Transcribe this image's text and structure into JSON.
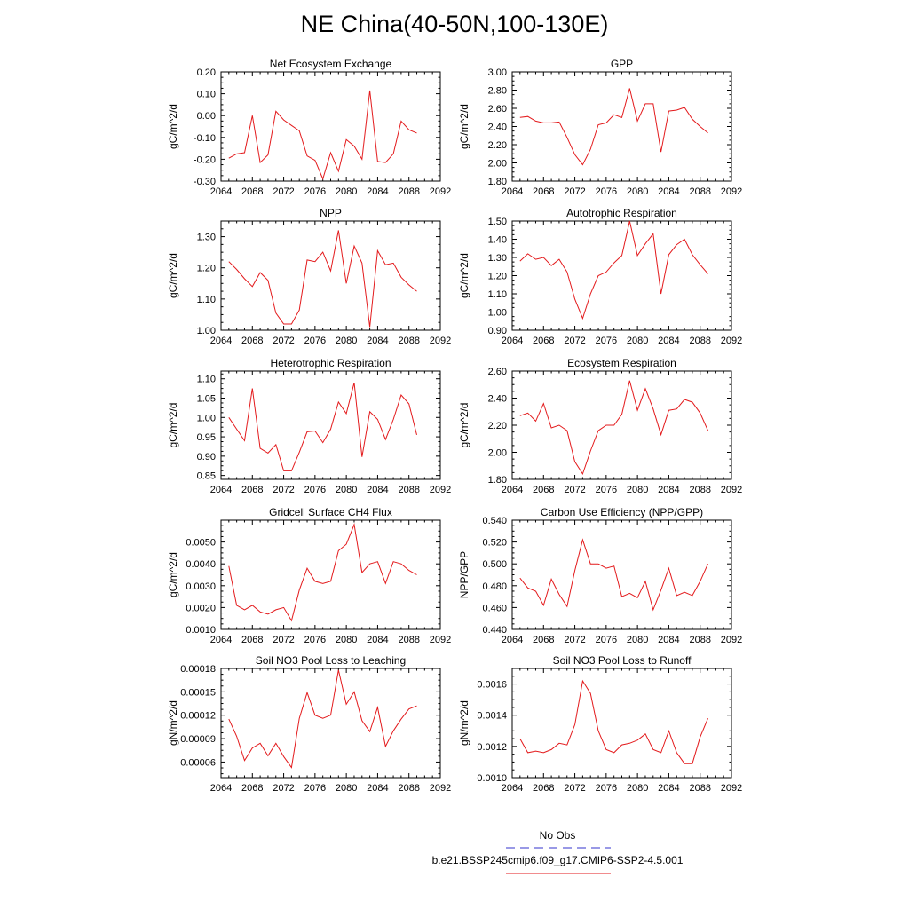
{
  "figure": {
    "title": "NE China(40-50N,100-130E)",
    "legend": {
      "obs_label": "No Obs",
      "obs_color": "#3333cc",
      "model_label": "b.e21.BSSP245cmip6.f09_g17.CMIP6-SSP2-4.5.001",
      "model_color": "#e31a1c"
    }
  },
  "chart_data": [
    {
      "type": "line",
      "title": "Net Ecosystem Exchange",
      "ylabel": "gC/m^2/d",
      "xlim": [
        2064,
        2092
      ],
      "xticks": [
        2064,
        2068,
        2072,
        2076,
        2080,
        2084,
        2088,
        2092
      ],
      "ylim": [
        -0.3,
        0.2
      ],
      "yticks": [
        "-0.30",
        "-0.20",
        "-0.10",
        "0.00",
        "0.10",
        "0.20"
      ],
      "series": [
        {
          "x": [
            2065,
            2066,
            2067,
            2068,
            2069,
            2070,
            2071,
            2072,
            2073,
            2074,
            2075,
            2076,
            2077,
            2078,
            2079,
            2080,
            2081,
            2082,
            2083,
            2084,
            2085,
            2086,
            2087,
            2088,
            2089
          ],
          "values": [
            -0.195,
            -0.175,
            -0.17,
            0.0,
            -0.215,
            -0.18,
            0.02,
            -0.02,
            -0.045,
            -0.07,
            -0.185,
            -0.205,
            -0.29,
            -0.17,
            -0.255,
            -0.11,
            -0.14,
            -0.2,
            0.115,
            -0.21,
            -0.215,
            -0.175,
            -0.025,
            -0.065,
            -0.08
          ]
        }
      ]
    },
    {
      "type": "line",
      "title": "GPP",
      "ylabel": "gC/m^2/d",
      "xlim": [
        2064,
        2092
      ],
      "xticks": [
        2064,
        2068,
        2072,
        2076,
        2080,
        2084,
        2088,
        2092
      ],
      "ylim": [
        1.8,
        3.0
      ],
      "yticks": [
        "1.80",
        "2.00",
        "2.20",
        "2.40",
        "2.60",
        "2.80",
        "3.00"
      ],
      "series": [
        {
          "x": [
            2065,
            2066,
            2067,
            2068,
            2069,
            2070,
            2071,
            2072,
            2073,
            2074,
            2075,
            2076,
            2077,
            2078,
            2079,
            2080,
            2081,
            2082,
            2083,
            2084,
            2085,
            2086,
            2087,
            2088,
            2089
          ],
          "values": [
            2.5,
            2.51,
            2.46,
            2.44,
            2.44,
            2.45,
            2.28,
            2.09,
            1.98,
            2.15,
            2.42,
            2.44,
            2.53,
            2.5,
            2.82,
            2.46,
            2.65,
            2.65,
            2.12,
            2.57,
            2.58,
            2.61,
            2.48,
            2.4,
            2.33
          ]
        }
      ]
    },
    {
      "type": "line",
      "title": "NPP",
      "ylabel": "gC/m^2/d",
      "xlim": [
        2064,
        2092
      ],
      "xticks": [
        2064,
        2068,
        2072,
        2076,
        2080,
        2084,
        2088,
        2092
      ],
      "ylim": [
        1.0,
        1.35
      ],
      "yticks": [
        "1.00",
        "1.10",
        "1.20",
        "1.30"
      ],
      "series": [
        {
          "x": [
            2065,
            2066,
            2067,
            2068,
            2069,
            2070,
            2071,
            2072,
            2073,
            2074,
            2075,
            2076,
            2077,
            2078,
            2079,
            2080,
            2081,
            2082,
            2083,
            2084,
            2085,
            2086,
            2087,
            2088,
            2089
          ],
          "values": [
            1.22,
            1.195,
            1.165,
            1.14,
            1.185,
            1.16,
            1.055,
            1.02,
            1.02,
            1.065,
            1.225,
            1.22,
            1.25,
            1.19,
            1.32,
            1.15,
            1.27,
            1.215,
            1.01,
            1.255,
            1.21,
            1.215,
            1.17,
            1.145,
            1.125
          ]
        }
      ]
    },
    {
      "type": "line",
      "title": "Autotrophic Respiration",
      "ylabel": "gC/m^2/d",
      "xlim": [
        2064,
        2092
      ],
      "xticks": [
        2064,
        2068,
        2072,
        2076,
        2080,
        2084,
        2088,
        2092
      ],
      "ylim": [
        0.9,
        1.5
      ],
      "yticks": [
        "0.90",
        "1.00",
        "1.10",
        "1.20",
        "1.30",
        "1.40",
        "1.50"
      ],
      "series": [
        {
          "x": [
            2065,
            2066,
            2067,
            2068,
            2069,
            2070,
            2071,
            2072,
            2073,
            2074,
            2075,
            2076,
            2077,
            2078,
            2079,
            2080,
            2081,
            2082,
            2083,
            2084,
            2085,
            2086,
            2087,
            2088,
            2089
          ],
          "values": [
            1.28,
            1.32,
            1.29,
            1.3,
            1.255,
            1.29,
            1.22,
            1.07,
            0.965,
            1.1,
            1.2,
            1.22,
            1.27,
            1.31,
            1.5,
            1.31,
            1.375,
            1.43,
            1.1,
            1.315,
            1.37,
            1.4,
            1.315,
            1.26,
            1.21
          ]
        }
      ]
    },
    {
      "type": "line",
      "title": "Heterotrophic Respiration",
      "ylabel": "gC/m^2/d",
      "xlim": [
        2064,
        2092
      ],
      "xticks": [
        2064,
        2068,
        2072,
        2076,
        2080,
        2084,
        2088,
        2092
      ],
      "ylim": [
        0.84,
        1.12
      ],
      "yticks": [
        "0.85",
        "0.90",
        "0.95",
        "1.00",
        "1.05",
        "1.10"
      ],
      "series": [
        {
          "x": [
            2065,
            2066,
            2067,
            2068,
            2069,
            2070,
            2071,
            2072,
            2073,
            2074,
            2075,
            2076,
            2077,
            2078,
            2079,
            2080,
            2081,
            2082,
            2083,
            2084,
            2085,
            2086,
            2087,
            2088,
            2089
          ],
          "values": [
            1.0,
            0.97,
            0.94,
            1.075,
            0.92,
            0.908,
            0.93,
            0.862,
            0.862,
            0.91,
            0.963,
            0.965,
            0.935,
            0.97,
            1.04,
            1.01,
            1.09,
            0.898,
            1.015,
            0.995,
            0.943,
            0.995,
            1.058,
            1.035,
            0.955
          ]
        }
      ]
    },
    {
      "type": "line",
      "title": "Ecosystem Respiration",
      "ylabel": "gC/m^2/d",
      "xlim": [
        2064,
        2092
      ],
      "xticks": [
        2064,
        2068,
        2072,
        2076,
        2080,
        2084,
        2088,
        2092
      ],
      "ylim": [
        1.8,
        2.6
      ],
      "yticks": [
        "1.80",
        "2.00",
        "2.20",
        "2.40",
        "2.60"
      ],
      "series": [
        {
          "x": [
            2065,
            2066,
            2067,
            2068,
            2069,
            2070,
            2071,
            2072,
            2073,
            2074,
            2075,
            2076,
            2077,
            2078,
            2079,
            2080,
            2081,
            2082,
            2083,
            2084,
            2085,
            2086,
            2087,
            2088,
            2089
          ],
          "values": [
            2.27,
            2.29,
            2.23,
            2.36,
            2.18,
            2.2,
            2.16,
            1.93,
            1.84,
            2.01,
            2.16,
            2.2,
            2.2,
            2.28,
            2.53,
            2.31,
            2.47,
            2.32,
            2.13,
            2.31,
            2.32,
            2.39,
            2.37,
            2.29,
            2.16
          ]
        }
      ]
    },
    {
      "type": "line",
      "title": "Gridcell Surface CH4 Flux",
      "ylabel": "gC/m^2/d",
      "xlim": [
        2064,
        2092
      ],
      "xticks": [
        2064,
        2068,
        2072,
        2076,
        2080,
        2084,
        2088,
        2092
      ],
      "ylim": [
        0.001,
        0.006
      ],
      "yticks": [
        "0.0010",
        "0.0020",
        "0.0030",
        "0.0040",
        "0.0050"
      ],
      "series": [
        {
          "x": [
            2065,
            2066,
            2067,
            2068,
            2069,
            2070,
            2071,
            2072,
            2073,
            2074,
            2075,
            2076,
            2077,
            2078,
            2079,
            2080,
            2081,
            2082,
            2083,
            2084,
            2085,
            2086,
            2087,
            2088,
            2089
          ],
          "values": [
            0.0039,
            0.0021,
            0.0019,
            0.0021,
            0.0018,
            0.0017,
            0.0019,
            0.002,
            0.0014,
            0.0028,
            0.0038,
            0.0032,
            0.0031,
            0.0032,
            0.0046,
            0.0049,
            0.0058,
            0.0036,
            0.004,
            0.0041,
            0.0031,
            0.0041,
            0.004,
            0.0037,
            0.0035
          ]
        }
      ]
    },
    {
      "type": "line",
      "title": "Carbon Use Efficiency (NPP/GPP)",
      "ylabel": "NPP/GPP",
      "xlim": [
        2064,
        2092
      ],
      "xticks": [
        2064,
        2068,
        2072,
        2076,
        2080,
        2084,
        2088,
        2092
      ],
      "ylim": [
        0.44,
        0.54
      ],
      "yticks": [
        "0.440",
        "0.460",
        "0.480",
        "0.500",
        "0.520",
        "0.540"
      ],
      "series": [
        {
          "x": [
            2065,
            2066,
            2067,
            2068,
            2069,
            2070,
            2071,
            2072,
            2073,
            2074,
            2075,
            2076,
            2077,
            2078,
            2079,
            2080,
            2081,
            2082,
            2083,
            2084,
            2085,
            2086,
            2087,
            2088,
            2089
          ],
          "values": [
            0.487,
            0.478,
            0.475,
            0.462,
            0.486,
            0.472,
            0.461,
            0.494,
            0.522,
            0.5,
            0.5,
            0.496,
            0.498,
            0.47,
            0.473,
            0.469,
            0.484,
            0.458,
            0.476,
            0.496,
            0.471,
            0.474,
            0.471,
            0.484,
            0.5
          ]
        }
      ]
    },
    {
      "type": "line",
      "title": "Soil NO3 Pool Loss to Leaching",
      "ylabel": "gN/m^2/d",
      "xlim": [
        2064,
        2092
      ],
      "xticks": [
        2064,
        2068,
        2072,
        2076,
        2080,
        2084,
        2088,
        2092
      ],
      "ylim": [
        4e-05,
        0.00018
      ],
      "yticks": [
        "0.00006",
        "0.00009",
        "0.00012",
        "0.00015",
        "0.00018"
      ],
      "series": [
        {
          "x": [
            2065,
            2066,
            2067,
            2068,
            2069,
            2070,
            2071,
            2072,
            2073,
            2074,
            2075,
            2076,
            2077,
            2078,
            2079,
            2080,
            2081,
            2082,
            2083,
            2084,
            2085,
            2086,
            2087,
            2088,
            2089
          ],
          "values": [
            0.000115,
            9.3e-05,
            6.2e-05,
            7.8e-05,
            8.4e-05,
            6.8e-05,
            8.4e-05,
            6.7e-05,
            5.3e-05,
            0.000116,
            0.000149,
            0.00012,
            0.000116,
            0.00012,
            0.000178,
            0.000134,
            0.00015,
            0.000113,
            9.9e-05,
            0.00013,
            8e-05,
            0.0001,
            0.000115,
            0.000128,
            0.000132
          ]
        }
      ]
    },
    {
      "type": "line",
      "title": "Soil NO3 Pool Loss to Runoff",
      "ylabel": "gN/m^2/d",
      "xlim": [
        2064,
        2092
      ],
      "xticks": [
        2064,
        2068,
        2072,
        2076,
        2080,
        2084,
        2088,
        2092
      ],
      "ylim": [
        0.001,
        0.0017
      ],
      "yticks": [
        "0.0010",
        "0.0012",
        "0.0014",
        "0.0016"
      ],
      "series": [
        {
          "x": [
            2065,
            2066,
            2067,
            2068,
            2069,
            2070,
            2071,
            2072,
            2073,
            2074,
            2075,
            2076,
            2077,
            2078,
            2079,
            2080,
            2081,
            2082,
            2083,
            2084,
            2085,
            2086,
            2087,
            2088,
            2089
          ],
          "values": [
            0.00125,
            0.00116,
            0.00117,
            0.00116,
            0.00118,
            0.00122,
            0.00121,
            0.00134,
            0.00162,
            0.00154,
            0.0013,
            0.00118,
            0.00116,
            0.00121,
            0.00122,
            0.00124,
            0.00128,
            0.00118,
            0.00116,
            0.0013,
            0.00116,
            0.00109,
            0.00109,
            0.00126,
            0.00138
          ]
        }
      ]
    }
  ]
}
